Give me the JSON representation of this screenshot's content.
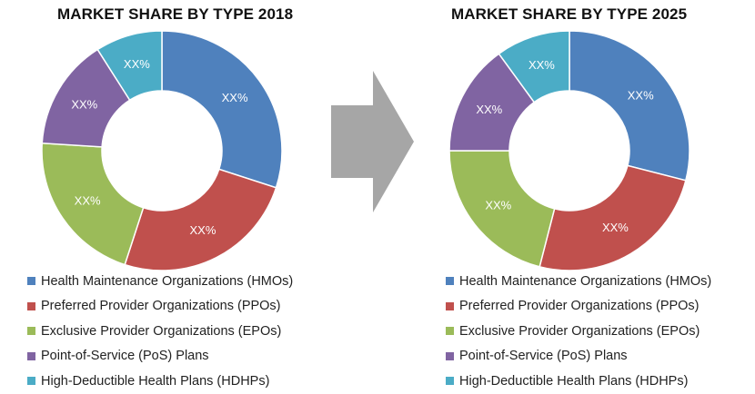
{
  "chart_data": [
    {
      "type": "donut",
      "title": "MARKET SHARE BY TYPE 2018",
      "categories": [
        "Health Maintenance Organizations (HMOs)",
        "Preferred Provider Organizations (PPOs)",
        "Exclusive Provider Organizations (EPOs)",
        "Point-of-Service (PoS) Plans",
        "High-Deductible Health Plans (HDHPs)"
      ],
      "values": [
        30,
        25,
        21,
        15,
        9
      ],
      "data_labels": [
        "XX%",
        "XX%",
        "XX%",
        "XX%",
        "XX%"
      ],
      "colors": [
        "#4f81bd",
        "#c0504d",
        "#9bbb59",
        "#8064a2",
        "#4bacc6"
      ],
      "legend_position": "bottom"
    },
    {
      "type": "donut",
      "title": "MARKET SHARE BY TYPE 2025",
      "categories": [
        "Health Maintenance Organizations (HMOs)",
        "Preferred Provider Organizations (PPOs)",
        "Exclusive Provider Organizations (EPOs)",
        "Point-of-Service (PoS) Plans",
        "High-Deductible Health Plans (HDHPs)"
      ],
      "values": [
        29,
        25,
        21,
        15,
        10
      ],
      "data_labels": [
        "XX%",
        "XX%",
        "XX%",
        "XX%",
        "XX%"
      ],
      "colors": [
        "#4f81bd",
        "#c0504d",
        "#9bbb59",
        "#8064a2",
        "#4bacc6"
      ],
      "legend_position": "bottom"
    }
  ],
  "arrow_color": "#a6a6a6"
}
